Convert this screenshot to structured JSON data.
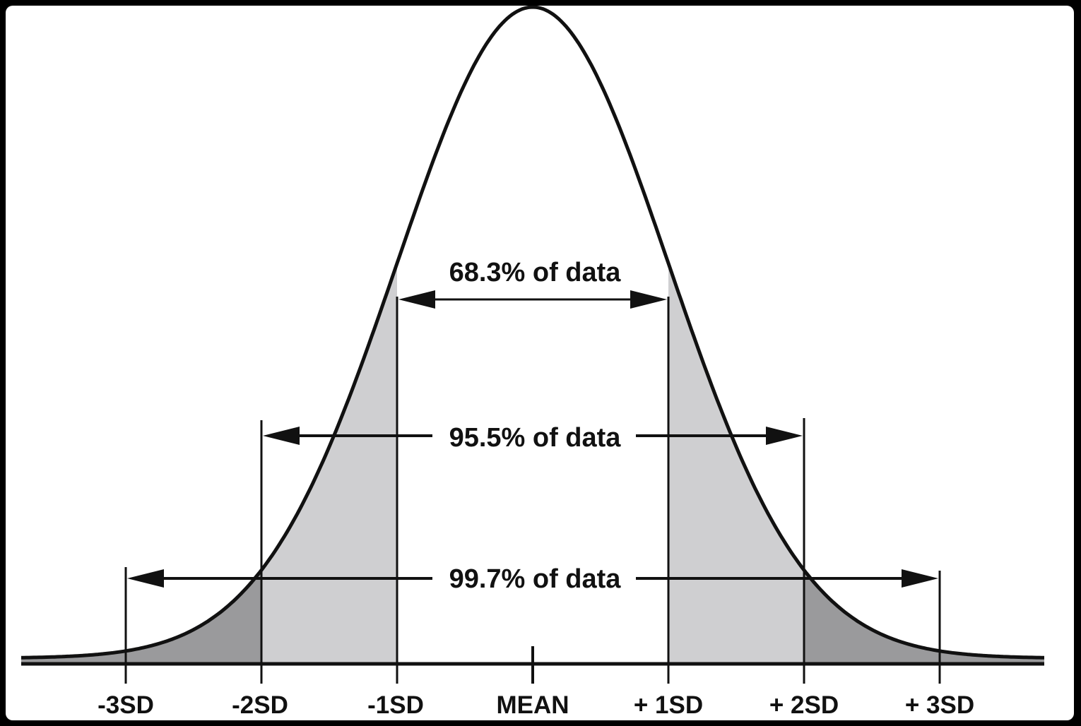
{
  "diagram": {
    "tick_labels": [
      "-3SD",
      "-2SD",
      "-1SD",
      "MEAN",
      "+ 1SD",
      "+ 2SD",
      "+ 3SD"
    ],
    "ranges": [
      {
        "label": "68.3% of data",
        "from_sd": -1,
        "to_sd": 1
      },
      {
        "label": "95.5% of data",
        "from_sd": -2,
        "to_sd": 2
      },
      {
        "label": "99.7% of data",
        "from_sd": -3,
        "to_sd": 3
      }
    ],
    "colors": {
      "curve": "#111111",
      "fill_inner": "#cfcfd1",
      "fill_outer": "#9a9a9c",
      "background": "#ffffff"
    }
  }
}
